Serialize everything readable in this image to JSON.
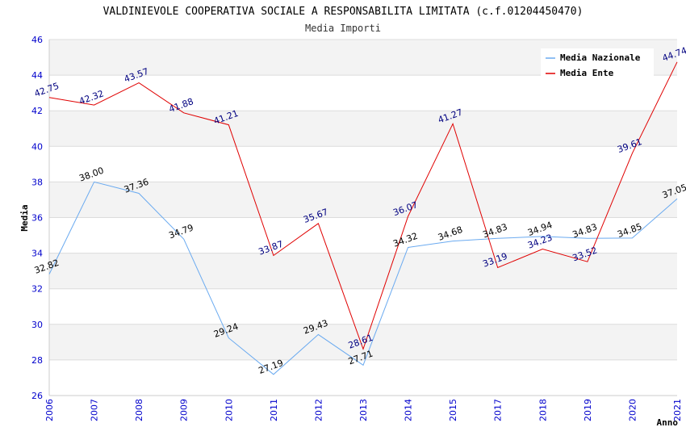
{
  "chart_data": {
    "type": "line",
    "title": "VALDINIEVOLE COOPERATIVA SOCIALE A RESPONSABILITA LIMITATA (c.f.01204450470)",
    "subtitle": "Media Importi",
    "xlabel": "Anno",
    "ylabel": "Media",
    "ylim": [
      26,
      46
    ],
    "yticks": [
      26,
      28,
      30,
      32,
      34,
      36,
      38,
      40,
      42,
      44,
      46
    ],
    "categories": [
      "2006",
      "2007",
      "2008",
      "2009",
      "2010",
      "2011",
      "2012",
      "2013",
      "2014",
      "2015",
      "2017",
      "2018",
      "2019",
      "2020",
      "2021"
    ],
    "legend_position": "top-right",
    "grid": true,
    "series": [
      {
        "name": "Media Nazionale",
        "color": "#6aaaf0",
        "values": [
          32.82,
          38.0,
          37.36,
          34.79,
          29.24,
          27.19,
          29.43,
          27.71,
          34.32,
          34.68,
          34.83,
          34.94,
          34.83,
          34.85,
          37.05
        ],
        "labels": [
          "32.82",
          "38.00",
          "37.36",
          "34.79",
          "29.24",
          "27.19",
          "29.43",
          "27.71",
          "34.32",
          "34.68",
          "34.83",
          "34.94",
          "34.83",
          "34.85",
          "37.05"
        ]
      },
      {
        "name": "Media Ente",
        "color": "#e00000",
        "values": [
          42.75,
          42.32,
          43.57,
          41.88,
          41.21,
          33.87,
          35.67,
          28.61,
          36.07,
          41.27,
          33.19,
          34.23,
          33.52,
          39.61,
          44.74
        ],
        "labels": [
          "42.75",
          "42.32",
          "43.57",
          "41.88",
          "41.21",
          "33.87",
          "35.67",
          "28.61",
          "36.07",
          "41.27",
          "33.19",
          "34.23",
          "33.52",
          "39.61",
          "44.74"
        ]
      }
    ]
  }
}
